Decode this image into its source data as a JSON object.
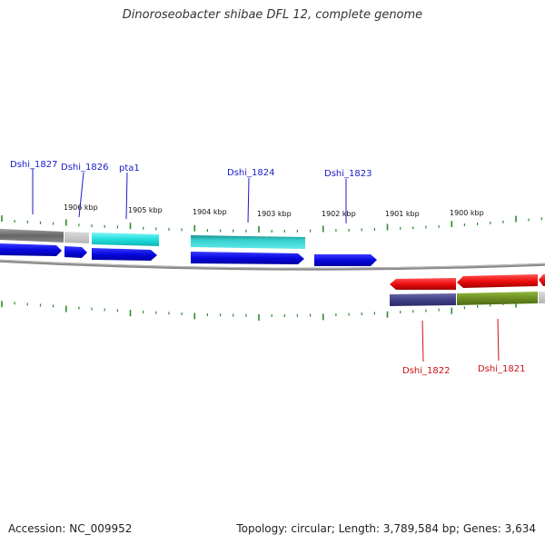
{
  "title": "Dinoroseobacter shibae DFL 12, complete genome",
  "ruler_labels": [
    "1906 kbp",
    "1905 kbp",
    "1904 kbp",
    "1903 kbp",
    "1902 kbp",
    "1901 kbp",
    "1900 kbp"
  ],
  "genes_top": [
    "Dshi_1827",
    "Dshi_1826",
    "pta1",
    "Dshi_1824",
    "Dshi_1823"
  ],
  "genes_bottom": [
    "Dshi_1822",
    "Dshi_1821"
  ],
  "colors": {
    "gene_label_top": "#1a1acc",
    "gene_label_bottom": "#cc1111",
    "tick": "#2e8b2e",
    "forward_arrow": "#1010e0",
    "reverse_arrow": "#ee1111",
    "cyan_bar": "#22dddd",
    "teal_bar": "#33cccc",
    "gray_bar": "#777777",
    "navy_bar": "#44448a",
    "olive_bar": "#6b8e23",
    "backbone": "#777777"
  },
  "footer": {
    "accession": "Accession: NC_009952",
    "stats": "Topology: circular; Length: 3,789,584 bp; Genes: 3,634"
  }
}
